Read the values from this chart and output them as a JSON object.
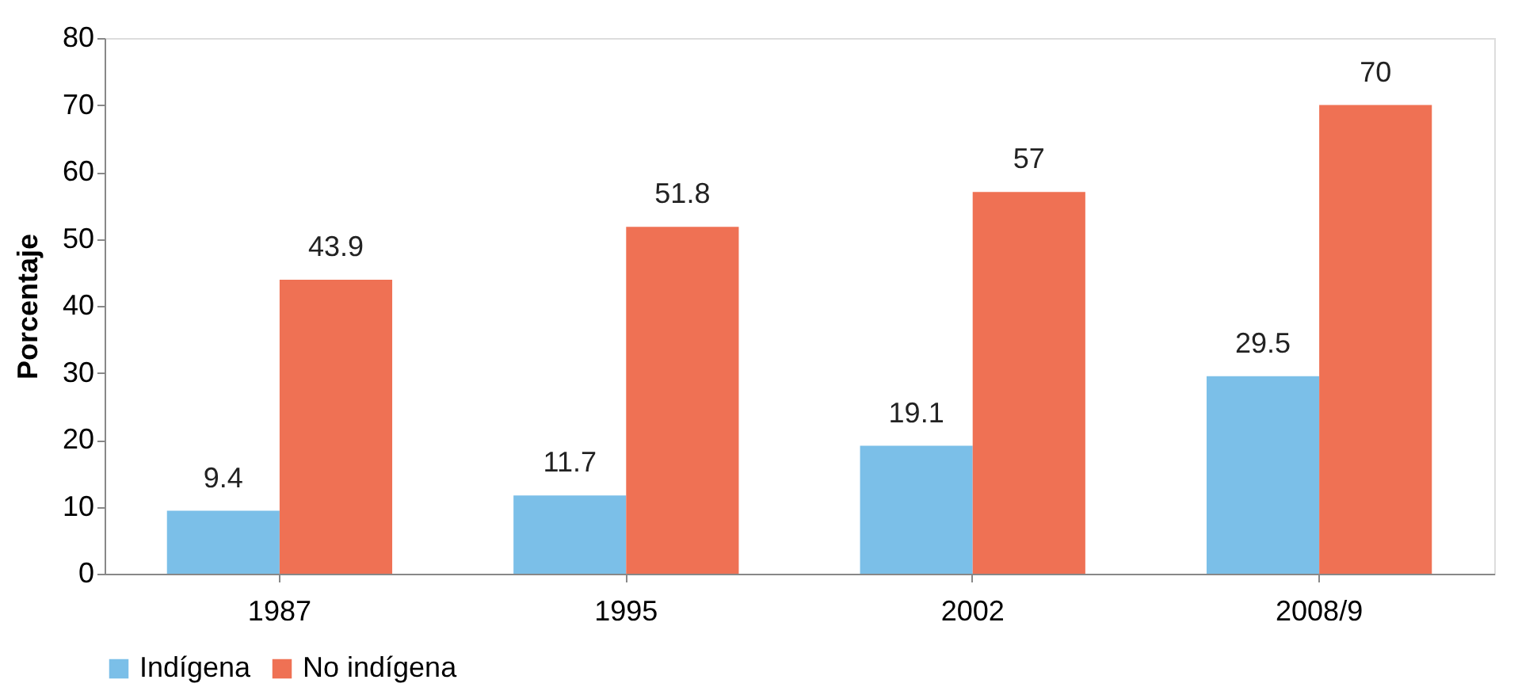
{
  "chart_data": {
    "type": "bar",
    "ylabel": "Porcentaje",
    "categories": [
      "1987",
      "1995",
      "2002",
      "2008/9"
    ],
    "series": [
      {
        "name": "Indígena",
        "color": "#7bbfe8",
        "values": [
          9.4,
          11.7,
          19.1,
          29.5
        ]
      },
      {
        "name": "No indígena",
        "color": "#ef7154",
        "values": [
          43.9,
          51.8,
          57,
          70
        ]
      }
    ],
    "ylim": [
      0,
      80
    ],
    "yticks": [
      0,
      10,
      20,
      30,
      40,
      50,
      60,
      70,
      80
    ],
    "grid": false,
    "legend": "bottom",
    "data_labels": true
  }
}
